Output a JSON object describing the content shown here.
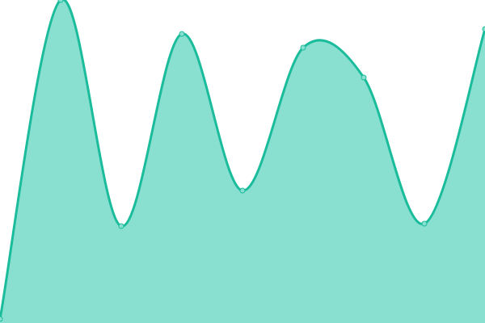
{
  "chart_data": {
    "type": "area",
    "x": [
      0,
      1,
      2,
      3,
      4,
      5,
      6,
      7,
      8
    ],
    "values": [
      5,
      400,
      120,
      358,
      164,
      341,
      304,
      123,
      364
    ],
    "ylim": [
      0,
      400
    ],
    "grid": false,
    "smooth": true,
    "colors": {
      "line": "#1abc9c",
      "fill": "#8ae0d0",
      "point_fill": "#8ae0d0"
    }
  }
}
